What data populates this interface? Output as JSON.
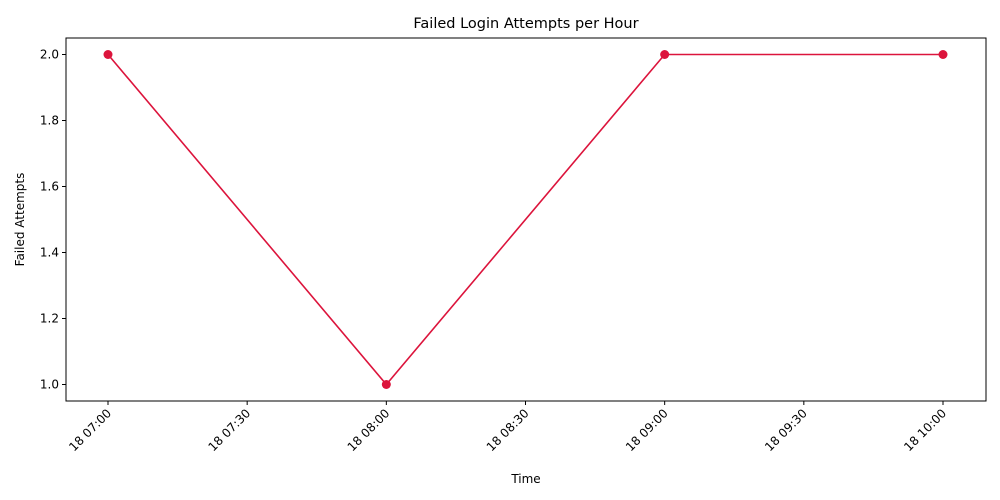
{
  "chart_data": {
    "type": "line",
    "title": "Failed Login Attempts per Hour",
    "xlabel": "Time",
    "ylabel": "Failed Attempts",
    "x": [
      "18 07:00",
      "18 08:00",
      "18 09:00",
      "18 10:00"
    ],
    "series": [
      {
        "values": [
          2,
          1,
          2,
          2
        ],
        "color": "#dc143c"
      }
    ],
    "x_ticks": [
      "18 07:00",
      "18 07:30",
      "18 08:00",
      "18 08:30",
      "18 09:00",
      "18 09:30",
      "18 10:00"
    ],
    "y_ticks": [
      "1.0",
      "1.2",
      "1.4",
      "1.6",
      "1.8",
      "2.0"
    ],
    "ylim": [
      0.95,
      2.05
    ],
    "grid": false,
    "marker": "circle"
  }
}
